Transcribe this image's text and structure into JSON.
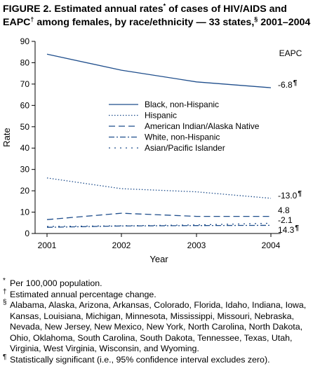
{
  "title": {
    "part1": "FIGURE 2. Estimated annual rates",
    "mark1": "*",
    "part2": " of cases of HIV/AIDS and EAPC",
    "mark2": "†",
    "part3": " among females, by race/ethnicity — 33 states,",
    "mark3": "§",
    "part4": " 2001–2004"
  },
  "chart_data": {
    "type": "line",
    "title": "",
    "xlabel": "Year",
    "ylabel": "Rate",
    "categories": [
      "2001",
      "2002",
      "2003",
      "2004"
    ],
    "ylim": [
      0,
      90
    ],
    "yticks": [
      0,
      10,
      20,
      30,
      40,
      50,
      60,
      70,
      80,
      90
    ],
    "grid": false,
    "legend_position": "center-right",
    "eapc_header": "EAPC",
    "series": [
      {
        "name": "Black, non-Hispanic",
        "values": [
          84,
          76.5,
          71,
          68.3
        ],
        "eapc": "-6.8",
        "eapc_mark": "¶",
        "dash": "solid",
        "color": "#1f4e8c"
      },
      {
        "name": "Hispanic",
        "values": [
          26,
          21,
          19.5,
          16.5
        ],
        "eapc": "-13.0",
        "eapc_mark": "¶",
        "dash": "dotted",
        "color": "#1f4e8c"
      },
      {
        "name": "American Indian/Alaska Native",
        "values": [
          6.5,
          9.5,
          8,
          8
        ],
        "eapc": "4.8",
        "eapc_mark": "",
        "dash": "dashed",
        "color": "#1f4e8c"
      },
      {
        "name": "White, non-Hispanic",
        "values": [
          2.9,
          3.5,
          3.7,
          3.8
        ],
        "eapc": "-2.1",
        "eapc_mark": "",
        "dash": "dashdot",
        "color": "#1f4e8c"
      },
      {
        "name": "Asian/Pacific Islander",
        "values": [
          3.3,
          3.6,
          4.0,
          4.8
        ],
        "eapc": "14.3",
        "eapc_mark": "¶",
        "dash": "sparse",
        "color": "#1f4e8c"
      }
    ]
  },
  "footnotes": [
    {
      "mark": "*",
      "text": "Per 100,000 population."
    },
    {
      "mark": "†",
      "text": "Estimated annual percentage change."
    },
    {
      "mark": "§",
      "text": "Alabama, Alaska, Arizona, Arkansas, Colorado, Florida, Idaho, Indiana, Iowa, Kansas, Louisiana, Michigan, Minnesota, Mississippi, Missouri, Nebraska, Nevada, New Jersey, New Mexico, New York, North Carolina, North Dakota, Ohio, Oklahoma, South Carolina, South Dakota, Tennessee, Texas, Utah, Virginia, West Virginia, Wisconsin, and Wyoming."
    },
    {
      "mark": "¶",
      "text": "Statistically significant (i.e., 95% confidence interval excludes zero)."
    }
  ]
}
